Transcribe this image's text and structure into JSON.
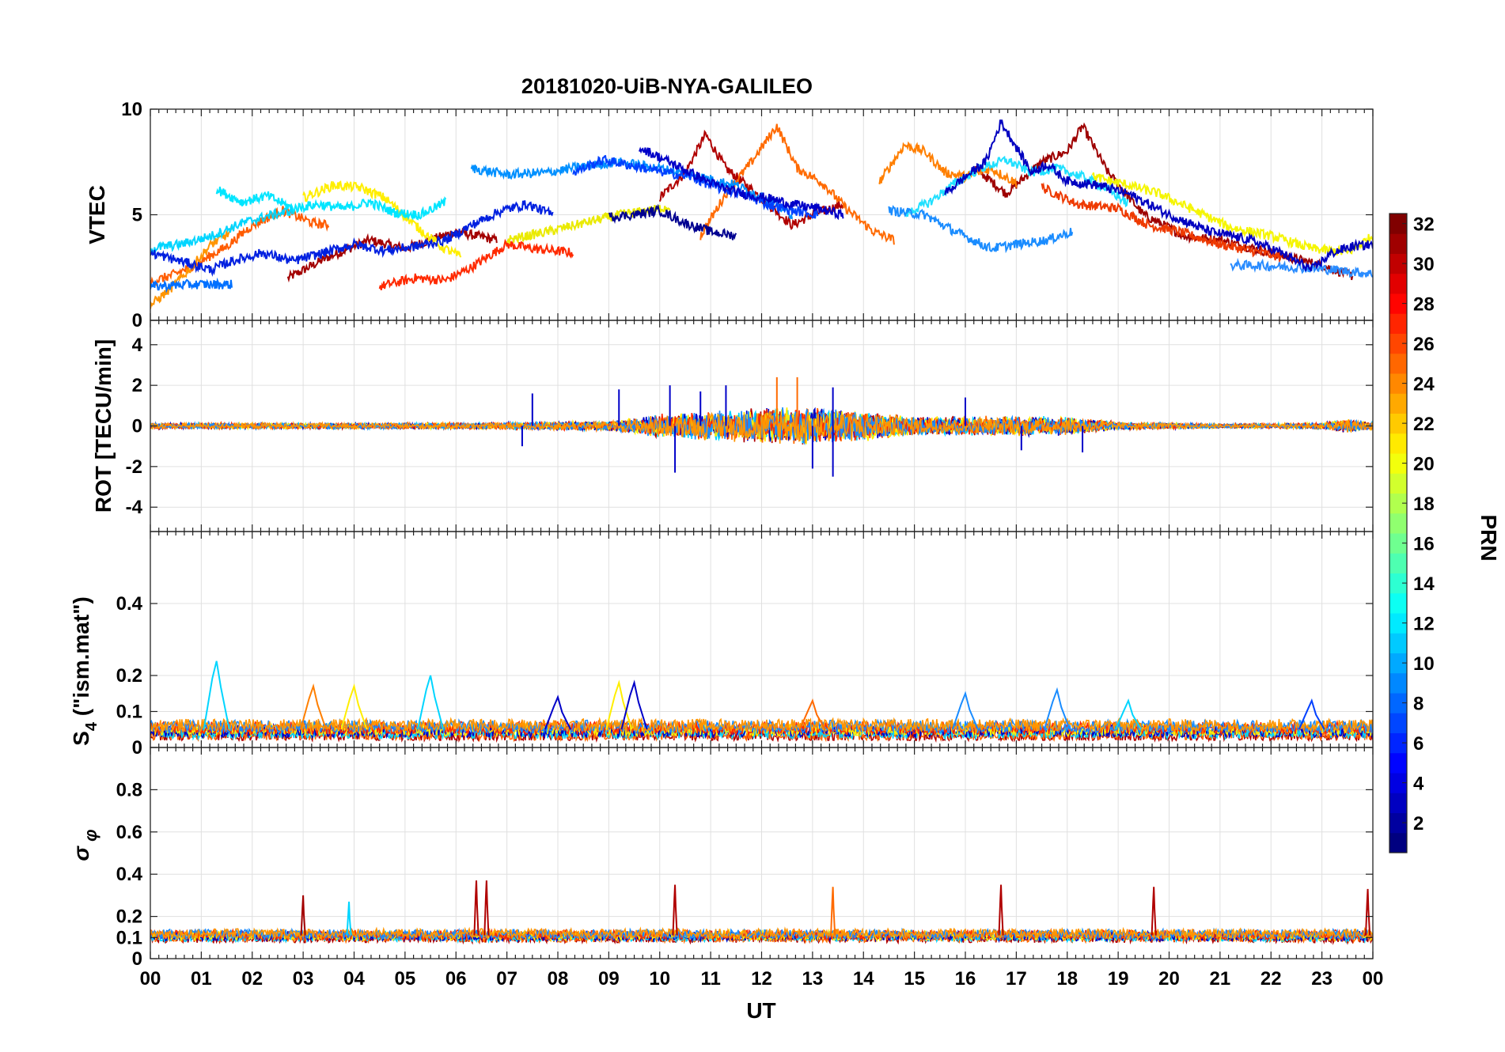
{
  "chart_data": {
    "type": "line",
    "title": "20181020-UiB-NYA-GALILEO",
    "xlabel": "UT",
    "x_tick_labels": [
      "00",
      "01",
      "02",
      "03",
      "04",
      "05",
      "06",
      "07",
      "08",
      "09",
      "10",
      "11",
      "12",
      "13",
      "14",
      "15",
      "16",
      "17",
      "18",
      "19",
      "20",
      "21",
      "22",
      "23",
      "00"
    ],
    "xlim_hours": [
      0,
      24
    ],
    "grid": true,
    "colorbar": {
      "label": "PRN",
      "range": [
        1,
        32
      ],
      "ticks": [
        "2",
        "4",
        "6",
        "8",
        "10",
        "12",
        "14",
        "16",
        "18",
        "20",
        "22",
        "24",
        "26",
        "28",
        "30",
        "32"
      ],
      "colormap": "jet"
    },
    "panels": [
      {
        "id": "vtec",
        "ylabel": "VTEC",
        "ylim": [
          0,
          10
        ],
        "y_ticks": [
          "0",
          "5",
          "10"
        ],
        "series": [
          {
            "prn": 31,
            "color": "#a30000",
            "x": [
              2.7,
              3.5,
              4.3,
              5.0,
              6.0,
              6.8
            ],
            "y": [
              2.0,
              3.0,
              3.8,
              3.4,
              4.2,
              3.8
            ]
          },
          {
            "prn": 30,
            "color": "#b00000",
            "x": [
              10.0,
              10.5,
              10.9,
              11.3,
              11.8,
              12.6,
              13.0,
              13.6
            ],
            "y": [
              5.8,
              7.0,
              8.8,
              7.2,
              6.2,
              4.5,
              5.0,
              5.5
            ]
          },
          {
            "prn": 30,
            "color": "#9e0000",
            "x": [
              16.2,
              16.8,
              17.5,
              18.0,
              18.3,
              18.8,
              19.5,
              20.3,
              21.0,
              22.0,
              23.0,
              23.6
            ],
            "y": [
              7.2,
              6.0,
              7.5,
              8.0,
              9.2,
              7.0,
              5.0,
              4.0,
              3.8,
              3.2,
              2.6,
              2.1
            ]
          },
          {
            "prn": 28,
            "color": "#ff2a00",
            "x": [
              4.5,
              5.2,
              5.8,
              6.3,
              7.0,
              7.5,
              8.3
            ],
            "y": [
              1.6,
              2.0,
              1.9,
              2.5,
              3.6,
              3.4,
              3.2
            ]
          },
          {
            "prn": 27,
            "color": "#ee3a00",
            "x": [
              17.5,
              18.2,
              19.0,
              19.6,
              20.2,
              21.0,
              22.2
            ],
            "y": [
              6.3,
              5.5,
              5.3,
              4.5,
              4.2,
              3.6,
              3.0
            ]
          },
          {
            "prn": 25,
            "color": "#ff5c00",
            "x": [
              0.0,
              0.5,
              1.0,
              1.5,
              2.0,
              2.6,
              3.2,
              3.5
            ],
            "y": [
              1.8,
              2.2,
              2.8,
              3.5,
              4.5,
              5.2,
              4.6,
              4.5
            ]
          },
          {
            "prn": 24,
            "color": "#ff6a00",
            "x": [
              10.8,
              11.3,
              11.8,
              12.3,
              12.7,
              13.2,
              13.7,
              14.2,
              14.6
            ],
            "y": [
              4.0,
              6.0,
              7.5,
              9.2,
              7.2,
              6.5,
              5.2,
              4.2,
              3.8
            ]
          },
          {
            "prn": 23,
            "color": "#ff7f00",
            "x": [
              14.3,
              14.8,
              15.2,
              15.6,
              16.0,
              16.5,
              17.0
            ],
            "y": [
              6.5,
              8.3,
              8.0,
              7.0,
              6.8,
              7.2,
              6.5
            ]
          },
          {
            "prn": 22,
            "color": "#ff9500",
            "x": [
              0.0,
              0.4,
              0.8,
              1.2,
              1.6
            ],
            "y": [
              0.7,
              1.5,
              2.5,
              3.6,
              4.2
            ]
          },
          {
            "prn": 20,
            "color": "#ffee00",
            "x": [
              3.0,
              3.6,
              4.1,
              4.6,
              5.2,
              5.7,
              6.1
            ],
            "y": [
              5.8,
              6.4,
              6.3,
              5.8,
              4.5,
              3.5,
              3.0
            ]
          },
          {
            "prn": 20,
            "color": "#eaea00",
            "x": [
              7.0,
              7.8,
              8.5,
              9.2,
              9.8,
              10.2
            ],
            "y": [
              3.8,
              4.2,
              4.6,
              5.0,
              5.2,
              5.4
            ]
          },
          {
            "prn": 19,
            "color": "#f5f500",
            "x": [
              18.5,
              19.2,
              19.8,
              20.5,
              21.2,
              22.0,
              22.8,
              23.5,
              24.0
            ],
            "y": [
              6.8,
              6.4,
              6.0,
              5.2,
              4.4,
              4.0,
              3.4,
              3.2,
              4.0
            ]
          },
          {
            "prn": 12,
            "color": "#00e5ff",
            "x": [
              1.3,
              1.8,
              2.3,
              2.8,
              3.3,
              3.8,
              4.3,
              4.8,
              5.3,
              5.8
            ],
            "y": [
              6.2,
              5.6,
              5.9,
              5.3,
              5.5,
              5.3,
              5.6,
              5.1,
              5.0,
              5.6
            ]
          },
          {
            "prn": 11,
            "color": "#00d5ff",
            "x": [
              0.0,
              0.6,
              1.2,
              1.8,
              2.4,
              2.8
            ],
            "y": [
              3.4,
              3.6,
              4.0,
              4.6,
              5.0,
              5.2
            ]
          },
          {
            "prn": 11,
            "color": "#20e0ff",
            "x": [
              14.8,
              15.3,
              15.8,
              16.3,
              16.8,
              17.3,
              17.8,
              18.3,
              18.8,
              19.2
            ],
            "y": [
              5.0,
              5.6,
              6.5,
              7.2,
              7.6,
              7.0,
              7.2,
              6.8,
              6.2,
              5.5
            ]
          },
          {
            "prn": 9,
            "color": "#0090ff",
            "x": [
              6.3,
              7.0,
              7.8,
              8.5,
              9.2,
              10.0,
              10.8,
              11.5,
              12.2,
              12.6
            ],
            "y": [
              7.2,
              6.9,
              7.0,
              7.3,
              7.5,
              7.2,
              6.8,
              6.4,
              5.6,
              5.0
            ]
          },
          {
            "prn": 9,
            "color": "#1a8cff",
            "x": [
              14.5,
              15.2,
              15.8,
              16.5,
              17.0,
              17.6,
              18.1
            ],
            "y": [
              5.2,
              5.0,
              4.2,
              3.4,
              3.6,
              3.8,
              4.2
            ]
          },
          {
            "prn": 8,
            "color": "#0070ff",
            "x": [
              0.0,
              0.8,
              1.6
            ],
            "y": [
              1.6,
              1.7,
              1.7
            ]
          },
          {
            "prn": 8,
            "color": "#2a8cff",
            "x": [
              21.2,
              21.8,
              22.5,
              23.2,
              23.6,
              24.0
            ],
            "y": [
              2.6,
              2.6,
              2.5,
              2.4,
              2.3,
              2.2
            ]
          },
          {
            "prn": 6,
            "color": "#0040ff",
            "x": [
              8.3,
              8.9,
              9.5,
              10.1,
              10.6,
              11.1,
              11.6,
              12.1,
              12.6,
              13.1
            ],
            "y": [
              7.0,
              7.6,
              7.3,
              7.0,
              6.8,
              6.3,
              6.0,
              5.5,
              5.2,
              5.0
            ]
          },
          {
            "prn": 5,
            "color": "#0020e0",
            "x": [
              0.0,
              0.6,
              1.2,
              1.6,
              2.2,
              2.8,
              3.4,
              4.0,
              4.6,
              5.2,
              5.8,
              6.3,
              6.9,
              7.4,
              7.9
            ],
            "y": [
              3.2,
              2.8,
              2.4,
              2.8,
              3.2,
              2.8,
              3.2,
              3.6,
              3.3,
              3.5,
              3.8,
              4.5,
              5.2,
              5.5,
              5.0
            ]
          },
          {
            "prn": 3,
            "color": "#0000c8",
            "x": [
              9.6,
              10.1,
              10.6,
              11.1,
              11.6,
              12.1,
              12.6,
              13.1,
              13.6
            ],
            "y": [
              8.2,
              7.6,
              7.0,
              6.4,
              6.0,
              5.8,
              5.5,
              5.3,
              5.0
            ]
          },
          {
            "prn": 3,
            "color": "#0000c0",
            "x": [
              15.6,
              16.0,
              16.4,
              16.7,
              17.0,
              17.3,
              17.6,
              18.0,
              18.6,
              19.2,
              20.0,
              20.8,
              21.6,
              22.2,
              22.8,
              23.2,
              23.6,
              24.0
            ],
            "y": [
              6.0,
              6.8,
              7.5,
              9.4,
              8.2,
              7.0,
              7.4,
              6.6,
              6.4,
              6.0,
              5.0,
              4.2,
              3.8,
              3.2,
              2.4,
              3.2,
              3.5,
              3.6
            ]
          },
          {
            "prn": 2,
            "color": "#000090",
            "x": [
              9.0,
              9.5,
              10.0,
              10.5,
              11.0,
              11.5
            ],
            "y": [
              4.9,
              5.0,
              5.2,
              4.6,
              4.2,
              4.0
            ]
          }
        ]
      },
      {
        "id": "rot",
        "ylabel": "ROT [TECU/min]",
        "ylim": [
          -5.2,
          5.2
        ],
        "y_ticks": [
          "-4",
          "-2",
          "0",
          "2",
          "4"
        ],
        "activity": [
          {
            "x": [
              0,
              6,
              9,
              10,
              12,
              13,
              13.5,
              15,
              16,
              18,
              19,
              21,
              23,
              23.5,
              24
            ],
            "amp": [
              0.15,
              0.15,
              0.25,
              0.6,
              0.9,
              1.0,
              0.9,
              0.5,
              0.5,
              0.5,
              0.2,
              0.1,
              0.15,
              0.35,
              0.2
            ]
          }
        ],
        "spikes": [
          {
            "x": 7.5,
            "y": 1.6
          },
          {
            "x": 7.3,
            "y": -1.0
          },
          {
            "x": 9.2,
            "y": 1.8
          },
          {
            "x": 10.2,
            "y": 2.0
          },
          {
            "x": 10.3,
            "y": -2.3
          },
          {
            "x": 10.8,
            "y": 1.7
          },
          {
            "x": 11.3,
            "y": 2.0
          },
          {
            "x": 12.3,
            "y": 2.4
          },
          {
            "x": 12.7,
            "y": 2.4
          },
          {
            "x": 13.0,
            "y": -2.1
          },
          {
            "x": 13.4,
            "y": 1.9
          },
          {
            "x": 13.4,
            "y": -2.5
          },
          {
            "x": 16.0,
            "y": 1.4
          },
          {
            "x": 17.1,
            "y": -1.2
          },
          {
            "x": 18.3,
            "y": -1.3
          }
        ]
      },
      {
        "id": "s4",
        "ylabel": "S4 (\"ism.mat\")",
        "ylim": [
          0,
          0.6
        ],
        "y_ticks": [
          "0",
          "0.1",
          "0.2",
          "0.4"
        ],
        "baseline": 0.05,
        "spikes": [
          {
            "x": 1.3,
            "y": 0.24,
            "color": "#00d5ff"
          },
          {
            "x": 3.2,
            "y": 0.17,
            "color": "#ff7f00"
          },
          {
            "x": 4.0,
            "y": 0.17,
            "color": "#ffee00"
          },
          {
            "x": 5.5,
            "y": 0.2,
            "color": "#00d5ff"
          },
          {
            "x": 8.0,
            "y": 0.14,
            "color": "#0000c8"
          },
          {
            "x": 9.2,
            "y": 0.18,
            "color": "#ffee00"
          },
          {
            "x": 9.5,
            "y": 0.18,
            "color": "#0000c8"
          },
          {
            "x": 13.0,
            "y": 0.13,
            "color": "#ff6a00"
          },
          {
            "x": 16.0,
            "y": 0.15,
            "color": "#1a8cff"
          },
          {
            "x": 17.8,
            "y": 0.16,
            "color": "#1a8cff"
          },
          {
            "x": 19.2,
            "y": 0.13,
            "color": "#00d5ff"
          },
          {
            "x": 22.8,
            "y": 0.13,
            "color": "#0040ff"
          }
        ]
      },
      {
        "id": "sigma_phi",
        "ylabel": "σ φ",
        "ylim": [
          0,
          1.0
        ],
        "y_ticks": [
          "0",
          "0.1",
          "0.2",
          "0.4",
          "0.6",
          "0.8"
        ],
        "baseline": 0.11,
        "spikes": [
          {
            "x": 3.0,
            "y": 0.3,
            "color": "#a30000"
          },
          {
            "x": 3.9,
            "y": 0.27,
            "color": "#00d5ff"
          },
          {
            "x": 6.4,
            "y": 0.37,
            "color": "#b00000"
          },
          {
            "x": 6.6,
            "y": 0.37,
            "color": "#b00000"
          },
          {
            "x": 10.3,
            "y": 0.35,
            "color": "#b00000"
          },
          {
            "x": 13.4,
            "y": 0.34,
            "color": "#ff6a00"
          },
          {
            "x": 16.7,
            "y": 0.35,
            "color": "#b00000"
          },
          {
            "x": 19.7,
            "y": 0.34,
            "color": "#b00000"
          },
          {
            "x": 23.9,
            "y": 0.33,
            "color": "#b00000"
          }
        ]
      }
    ]
  },
  "axis_label_parts": {
    "s4_main": "S",
    "s4_sub": "4",
    "s4_rest": " (\"ism.mat\")",
    "sigma_main": "σ",
    "sigma_sub": "φ"
  }
}
